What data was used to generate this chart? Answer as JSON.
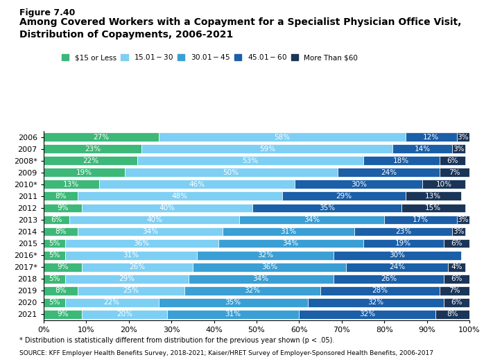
{
  "title_line1": "Figure 7.40",
  "title_line2": "Among Covered Workers with a Copayment for a Specialist Physician Office Visit,",
  "title_line3": "Distribution of Copayments, 2006-2021",
  "years": [
    "2006",
    "2007",
    "2008*",
    "2009",
    "2010*",
    "2011",
    "2012",
    "2013",
    "2014",
    "2015",
    "2016*",
    "2017*",
    "2018",
    "2019",
    "2020",
    "2021"
  ],
  "categories": [
    "$15 or Less",
    "$15.01 - $30",
    "$30.01 - $45",
    "$45.01 - $60",
    "More Than $60"
  ],
  "bar_colors": [
    "#3cb878",
    "#7ecff4",
    "#3a9fd4",
    "#1a5fa8",
    "#1a3558"
  ],
  "final_data": [
    [
      27,
      58,
      0,
      12,
      3
    ],
    [
      23,
      59,
      0,
      14,
      3
    ],
    [
      22,
      53,
      0,
      18,
      6
    ],
    [
      19,
      50,
      0,
      24,
      7
    ],
    [
      13,
      46,
      0,
      30,
      10
    ],
    [
      8,
      48,
      0,
      29,
      13
    ],
    [
      9,
      40,
      0,
      35,
      15
    ],
    [
      6,
      40,
      34,
      17,
      3
    ],
    [
      8,
      34,
      31,
      23,
      3
    ],
    [
      5,
      36,
      34,
      19,
      6
    ],
    [
      5,
      31,
      32,
      30,
      0
    ],
    [
      9,
      26,
      36,
      24,
      4
    ],
    [
      5,
      29,
      34,
      26,
      6
    ],
    [
      8,
      25,
      32,
      28,
      7
    ],
    [
      5,
      22,
      35,
      32,
      6
    ],
    [
      9,
      20,
      31,
      32,
      8
    ]
  ],
  "footnote1": "* Distribution is statistically different from distribution for the previous year shown (p < .05).",
  "footnote2": "SOURCE: KFF Employer Health Benefits Survey, 2018-2021; Kaiser/HRET Survey of Employer-Sponsored Health Benefits, 2006-2017",
  "xlim": [
    0,
    100
  ],
  "xticks": [
    0,
    10,
    20,
    30,
    40,
    50,
    60,
    70,
    80,
    90,
    100
  ],
  "xtick_labels": [
    "0%",
    "10%",
    "20%",
    "30%",
    "40%",
    "50%",
    "60%",
    "70%",
    "80%",
    "90%",
    "100%"
  ],
  "bar_height": 0.75,
  "label_fontsize": 7.5,
  "tick_fontsize": 8,
  "title_fontsize1": 9,
  "title_fontsize2": 10,
  "legend_fontsize": 7.5,
  "footnote_fontsize1": 7,
  "footnote_fontsize2": 6.5,
  "figsize": [
    6.98,
    5.25
  ],
  "dpi": 100
}
